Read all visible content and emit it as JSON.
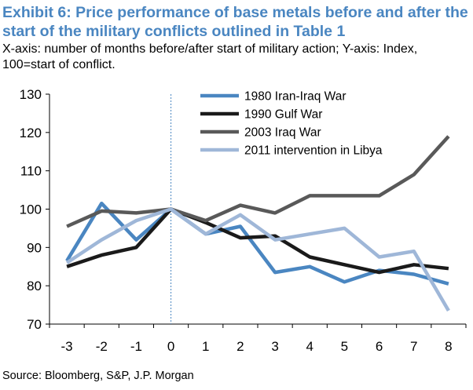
{
  "header": {
    "title": "Exhibit 6: Price performance of base metals before and after the start of the military conflicts outlined in Table 1",
    "subtitle": "X-axis: number of months before/after start of military action; Y-axis: Index, 100=start of conflict."
  },
  "footer": {
    "source": "Source: Bloomberg, S&P, J.P. Morgan"
  },
  "chart_data": {
    "type": "line",
    "title": "Exhibit 6: Price performance of base metals before and after the start of the military conflicts outlined in Table 1",
    "x": [
      -3,
      -2,
      -1,
      0,
      1,
      2,
      3,
      4,
      5,
      6,
      7,
      8
    ],
    "x_tick_labels": [
      "-3",
      "-2",
      "-1",
      "0",
      "1",
      "2",
      "3",
      "4",
      "5",
      "6",
      "7",
      "8"
    ],
    "ylim": [
      70,
      130
    ],
    "y_ticks": [
      70,
      80,
      90,
      100,
      110,
      120,
      130
    ],
    "y_tick_labels": [
      "70",
      "80",
      "90",
      "100",
      "110",
      "120",
      "130"
    ],
    "grid": false,
    "legend_position": "top-right",
    "reference_line": {
      "x": 0,
      "style": "dashed"
    },
    "series": [
      {
        "name": "1980 Iran-Iraq War",
        "color": "#4a86c1",
        "values": [
          86.5,
          101.5,
          92,
          100,
          93.5,
          95.5,
          83.5,
          85,
          81,
          84,
          83,
          80.5
        ]
      },
      {
        "name": "1990 Gulf War",
        "color": "#1a1a1a",
        "values": [
          85,
          88,
          90,
          100,
          96.5,
          92.5,
          93,
          87.5,
          85.5,
          83.5,
          85.5,
          84.5
        ]
      },
      {
        "name": "2003 Iraq War",
        "color": "#595959",
        "values": [
          95.5,
          99.5,
          99,
          100,
          97,
          101,
          99,
          103.5,
          103.5,
          103.5,
          109,
          119
        ]
      },
      {
        "name": "2011 intervention in Libya",
        "color": "#9fb7d8",
        "values": [
          86,
          92,
          97,
          100,
          93.5,
          98.5,
          92,
          93.5,
          95,
          87.5,
          89,
          73.5
        ]
      }
    ]
  }
}
